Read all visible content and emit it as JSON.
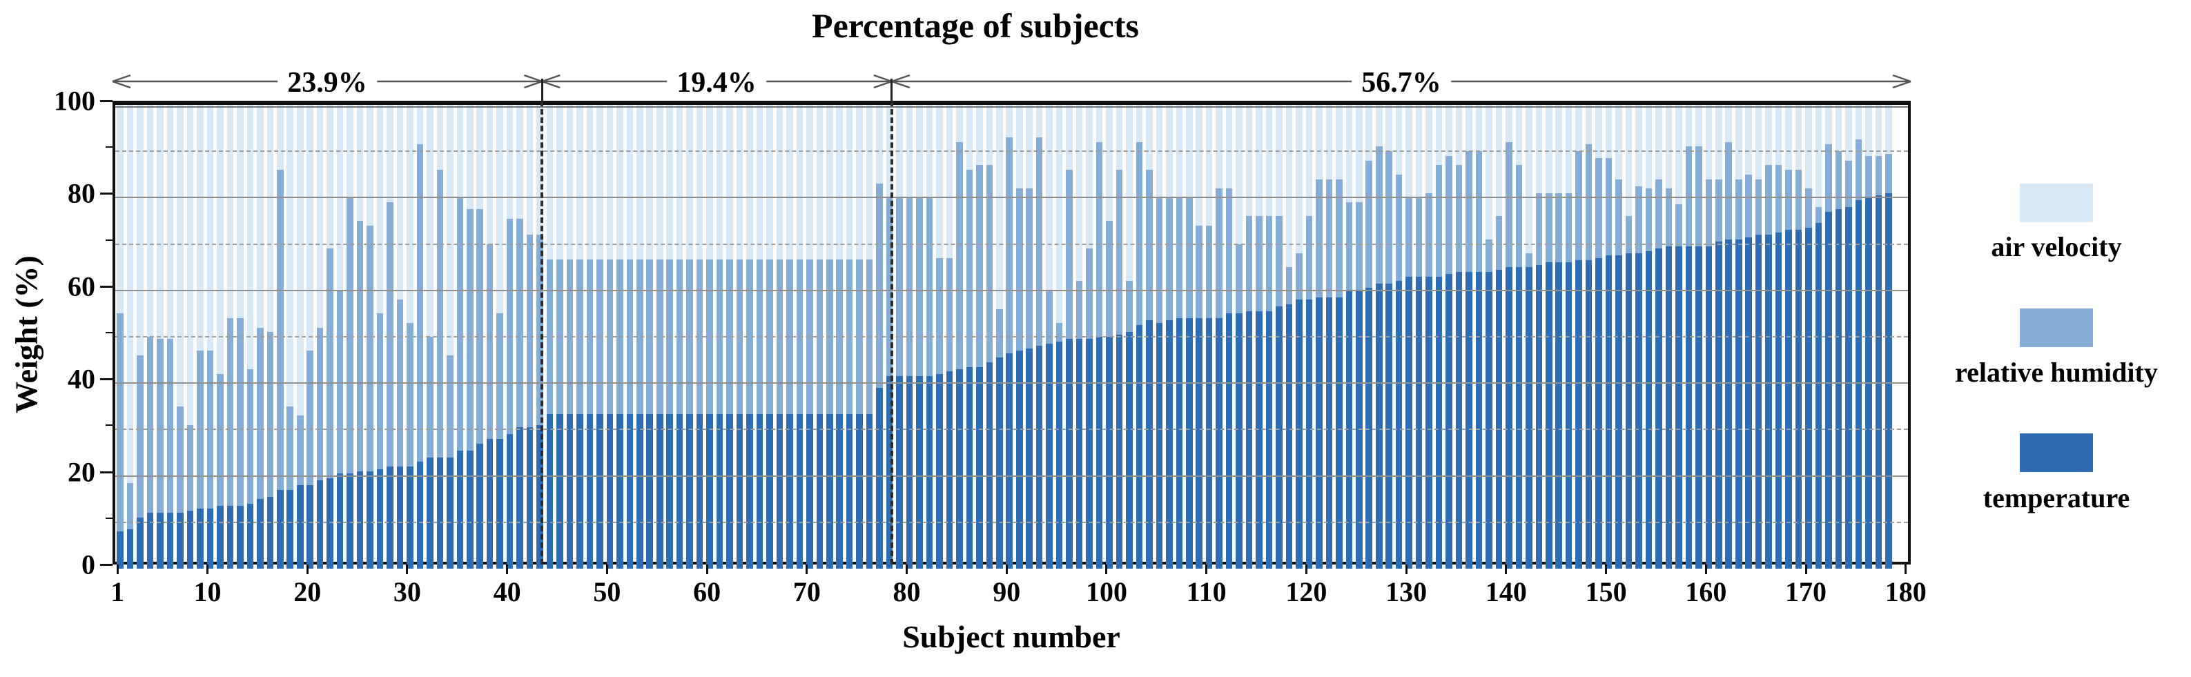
{
  "title": "Percentage of subjects",
  "axes": {
    "xlabel": "Subject number",
    "ylabel": "Weight (%)",
    "y_ticks": [
      0,
      20,
      40,
      60,
      80,
      100
    ],
    "x_ticks": [
      1,
      10,
      20,
      30,
      40,
      50,
      60,
      70,
      80,
      90,
      100,
      110,
      120,
      130,
      140,
      150,
      160,
      170,
      180
    ]
  },
  "legend": {
    "items": [
      {
        "label": "air velocity",
        "color": "#D9E8F5"
      },
      {
        "label": "relative humidity",
        "color": "#85ADD6"
      },
      {
        "label": "temperature",
        "color": "#2E6CB4"
      }
    ]
  },
  "chart_data": {
    "type": "bar",
    "stacked": true,
    "title": "Percentage of subjects",
    "xlabel": "Subject number",
    "ylabel": "Weight (%)",
    "ylim": [
      0,
      100
    ],
    "x_range": [
      1,
      180
    ],
    "grid": "solid lines at 20/40/60/80, dashed lines at 10/30/50/70/90",
    "legend_position": "right",
    "section_annotations": [
      {
        "label": "23.9%",
        "from_subject": 1,
        "to_subject": 43
      },
      {
        "label": "19.4%",
        "from_subject": 44,
        "to_subject": 78
      },
      {
        "label": "56.7%",
        "from_subject": 79,
        "to_subject": 180
      }
    ],
    "series": [
      {
        "name": "temperature",
        "color": "#2E6CB4",
        "values": [
          8,
          8.5,
          11,
          12,
          12,
          12,
          12,
          12.5,
          13,
          13,
          13.5,
          13.5,
          13.5,
          14,
          15,
          15.5,
          17,
          17,
          18,
          18,
          19,
          19.5,
          20.5,
          20.5,
          21,
          21,
          21.5,
          22,
          22,
          22,
          23,
          24,
          24,
          24,
          25.5,
          25.5,
          27,
          28,
          28,
          29,
          30.5,
          30.5,
          31,
          33.4,
          33.4,
          33.4,
          33.4,
          33.4,
          33.4,
          33.4,
          33.4,
          33.4,
          33.4,
          33.4,
          33.4,
          33.4,
          33.4,
          33.4,
          33.4,
          33.4,
          33.4,
          33.4,
          33.4,
          33.4,
          33.4,
          33.4,
          33.4,
          33.4,
          33.4,
          33.4,
          33.4,
          33.4,
          33.4,
          33.4,
          33.4,
          33.4,
          39,
          41.5,
          41.5,
          41.5,
          41.5,
          41.5,
          42,
          42.5,
          43,
          43.5,
          43.5,
          44.5,
          45.5,
          46.5,
          47,
          47.5,
          48,
          48.5,
          49,
          49.5,
          49.5,
          49.5,
          50,
          50,
          50.5,
          51,
          52.5,
          53.5,
          53,
          53.5,
          54,
          54,
          54,
          54,
          54,
          55,
          55,
          55.5,
          55.5,
          55.5,
          56.5,
          57,
          58,
          58,
          58.5,
          58.5,
          58.5,
          60,
          60,
          60.5,
          61.5,
          61.5,
          62,
          63,
          63,
          63,
          63,
          63.5,
          64,
          64,
          64,
          64,
          64.5,
          65,
          65,
          65,
          65.5,
          66,
          66,
          66,
          66.5,
          66.5,
          67,
          67.5,
          67.5,
          68,
          68,
          68.5,
          69,
          69.5,
          69.5,
          69.5,
          69.5,
          69.5,
          70.5,
          71,
          71,
          71.5,
          72,
          72,
          72.5,
          73,
          73,
          73.5,
          74.5,
          77,
          77.5,
          78,
          79.5,
          80,
          80.5,
          81
        ]
      },
      {
        "name": "relative humidity",
        "color": "#85ADD6",
        "values": [
          47,
          10,
          35,
          38,
          37.5,
          37.5,
          23,
          18.5,
          34,
          34,
          28.5,
          40.5,
          40.5,
          29,
          37,
          35.5,
          69,
          18,
          15,
          29,
          33,
          49.5,
          39.5,
          59.5,
          54,
          53,
          33.5,
          57,
          36,
          31,
          68.5,
          26,
          62,
          22,
          54.5,
          52,
          50.5,
          42,
          27,
          46.5,
          45,
          41.5,
          41,
          33.3,
          33.3,
          33.3,
          33.3,
          33.3,
          33.3,
          33.3,
          33.3,
          33.3,
          33.3,
          33.3,
          33.3,
          33.3,
          33.3,
          33.3,
          33.3,
          33.3,
          33.3,
          33.3,
          33.3,
          33.3,
          33.3,
          33.3,
          33.3,
          33.3,
          33.3,
          33.3,
          33.3,
          33.3,
          33.3,
          33.3,
          33.3,
          33.3,
          44,
          38.5,
          38.5,
          38.5,
          38.5,
          38.5,
          25,
          24.5,
          49,
          42.5,
          43.5,
          42.5,
          10.5,
          46.5,
          35,
          34.5,
          45,
          11.5,
          4,
          36.5,
          12.5,
          19.5,
          42,
          25,
          35.5,
          11,
          39.5,
          32.5,
          27,
          26.5,
          26,
          26,
          20,
          20,
          28,
          27,
          15,
          20.5,
          20.5,
          20.5,
          19.5,
          8,
          10,
          18,
          25.5,
          25.5,
          25.5,
          19,
          19,
          27.5,
          29.5,
          28.5,
          23,
          17,
          17,
          18,
          24,
          25.5,
          23,
          26,
          26,
          7,
          11.5,
          27,
          22,
          3,
          15.5,
          15,
          15,
          15,
          23.5,
          25,
          21.5,
          21,
          16.5,
          8,
          14.5,
          13.5,
          15,
          12.5,
          9,
          21.5,
          21.5,
          14.5,
          13.5,
          21,
          13,
          13.5,
          12,
          15,
          14.5,
          13,
          13,
          8.5,
          3.5,
          14.5,
          12.5,
          10,
          13,
          9,
          8.5,
          8.5
        ]
      },
      {
        "name": "air velocity",
        "color": "#D9E8F5",
        "values": [
          45,
          81.5,
          54,
          50,
          50.5,
          50.5,
          65,
          69,
          53,
          53,
          58,
          46,
          46,
          57,
          48,
          49,
          14,
          65,
          67,
          53,
          48,
          31,
          40,
          20,
          25,
          26,
          45,
          21,
          42,
          47,
          8.5,
          50,
          14,
          54,
          20,
          22.5,
          22.5,
          30,
          45,
          24.5,
          24.5,
          28,
          28,
          33.3,
          33.3,
          33.3,
          33.3,
          33.3,
          33.3,
          33.3,
          33.3,
          33.3,
          33.3,
          33.3,
          33.3,
          33.3,
          33.3,
          33.3,
          33.3,
          33.3,
          33.3,
          33.3,
          33.3,
          33.3,
          33.3,
          33.3,
          33.3,
          33.3,
          33.3,
          33.3,
          33.3,
          33.3,
          33.3,
          33.3,
          33.3,
          33.3,
          17,
          20,
          20,
          20,
          20,
          20,
          33,
          33,
          8,
          14,
          13,
          13,
          44,
          7,
          18,
          18,
          7,
          40,
          47,
          14,
          38,
          31,
          8,
          25,
          14,
          38,
          8,
          14,
          20,
          20,
          20,
          20,
          26,
          26,
          18,
          18,
          30,
          24,
          24,
          24,
          24,
          35,
          32,
          24,
          16,
          16,
          16,
          21,
          21,
          12,
          9,
          10,
          15,
          20,
          20,
          19,
          13,
          11,
          13,
          10,
          10,
          29,
          24,
          8,
          13,
          32,
          19,
          19,
          19,
          19,
          10,
          8.5,
          11.5,
          11.5,
          16,
          24,
          17.5,
          18,
          16,
          18,
          21.5,
          9,
          9,
          16,
          16,
          8,
          16,
          15,
          16,
          13,
          13,
          14,
          14,
          18,
          22,
          8.5,
          10,
          12,
          7.5,
          11,
          11,
          10.5
        ]
      }
    ]
  }
}
